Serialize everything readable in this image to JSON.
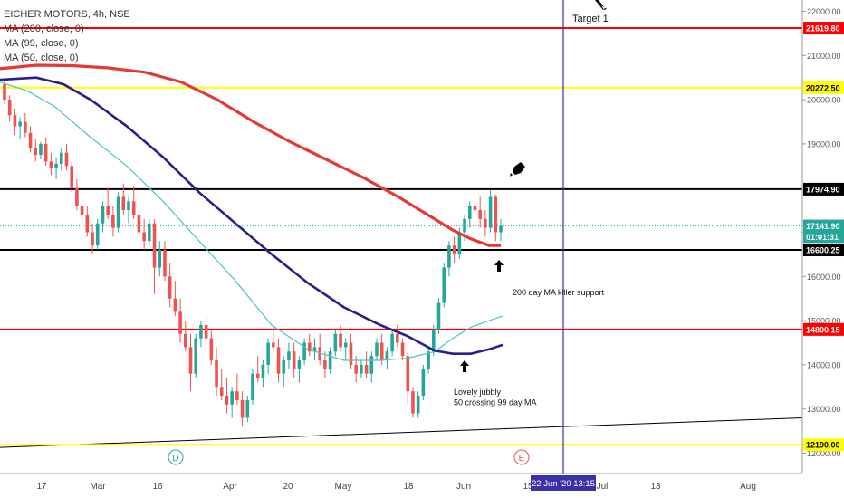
{
  "header": {
    "symbol_line": "EICHER MOTORS, 4h, NSE",
    "indicators": [
      "MA (200, close, 0)",
      "MA (99, close, 0)",
      "MA (50, close, 0)"
    ]
  },
  "colors": {
    "up_candle": "#26a69a",
    "down_candle": "#ef5350",
    "ma200": "#e53935",
    "ma99": "#2b1f8a",
    "ma50": "#4fc3c7",
    "hline_red": "#ff0000",
    "hline_yellow": "#ffff00",
    "hline_black": "#000000",
    "vline": "#3b30a8",
    "trendline": "#000000"
  },
  "chart_data": {
    "type": "candlestick",
    "x_ticks": [
      "17",
      "Mar",
      "16",
      "Apr",
      "20",
      "May",
      "18",
      "Jun",
      "15",
      "Jul",
      "13",
      "Aug"
    ],
    "y_ticks": [
      12000,
      13000,
      14000,
      15000,
      16000,
      17000,
      18000,
      19000,
      20000,
      21000,
      22000
    ],
    "y_tick_labels": [
      "12000.00",
      "13000.00",
      "14000.00",
      "15000.00",
      "16000.00",
      "17000.00",
      "18000.00",
      "19000.00",
      "20000.00",
      "21000.00",
      "22000.00"
    ],
    "ylim": [
      11800,
      22200
    ],
    "price_labels": [
      {
        "text": "21619.80",
        "value": 21619.8,
        "color": "#ff0000"
      },
      {
        "text": "20272.50",
        "value": 20272.5,
        "color": "#ffff00"
      },
      {
        "text": "17974.90",
        "value": 17974.9,
        "color": "#000000"
      },
      {
        "text": "17141.90",
        "value": 17141.9,
        "color": "#26a69a"
      },
      {
        "text": "01:01:31",
        "value": 16900,
        "color": "#26a69a"
      },
      {
        "text": "16600.25",
        "value": 16600.25,
        "color": "#000000"
      },
      {
        "text": "14800.15",
        "value": 14800.15,
        "color": "#ff0000"
      },
      {
        "text": "12190.00",
        "value": 12190,
        "color": "#ffff00"
      }
    ],
    "horizontal_lines": [
      {
        "value": 21619.8,
        "color": "#ff0000"
      },
      {
        "value": 20272.5,
        "color": "#ffff00"
      },
      {
        "value": 17974.9,
        "color": "#000000"
      },
      {
        "value": 16600.25,
        "color": "#000000"
      },
      {
        "value": 14800.15,
        "color": "#ff0000"
      },
      {
        "value": 12190,
        "color": "#ffff00"
      }
    ],
    "last_price": 17141.9,
    "vertical_line_date": "22 Jun '20",
    "vertical_line_time": "13:15",
    "candles": [
      [
        20350,
        20450,
        19900,
        20000
      ],
      [
        20000,
        20100,
        19500,
        19650
      ],
      [
        19650,
        19800,
        19200,
        19400
      ],
      [
        19400,
        19600,
        19100,
        19500
      ],
      [
        19500,
        19700,
        19150,
        19250
      ],
      [
        19250,
        19400,
        18800,
        18900
      ],
      [
        18900,
        19100,
        18600,
        18750
      ],
      [
        18750,
        19050,
        18650,
        19000
      ],
      [
        19000,
        19150,
        18500,
        18600
      ],
      [
        18600,
        18800,
        18300,
        18450
      ],
      [
        18450,
        18700,
        18200,
        18550
      ],
      [
        18550,
        18900,
        18400,
        18800
      ],
      [
        18800,
        19000,
        18400,
        18500
      ],
      [
        18500,
        18600,
        17900,
        18000
      ],
      [
        18000,
        18200,
        17500,
        17600
      ],
      [
        17600,
        17800,
        17200,
        17400
      ],
      [
        17400,
        17600,
        16900,
        17000
      ],
      [
        17000,
        17200,
        16500,
        16700
      ],
      [
        16700,
        17300,
        16600,
        17200
      ],
      [
        17200,
        17700,
        17000,
        17600
      ],
      [
        17600,
        18000,
        17300,
        17400
      ],
      [
        17400,
        17600,
        16900,
        17100
      ],
      [
        17100,
        17900,
        17000,
        17800
      ],
      [
        17800,
        18100,
        17400,
        17500
      ],
      [
        17500,
        17800,
        17200,
        17700
      ],
      [
        17700,
        18050,
        17300,
        17400
      ],
      [
        17400,
        17600,
        16900,
        17000
      ],
      [
        17000,
        17300,
        16600,
        16800
      ],
      [
        16800,
        17300,
        16700,
        17200
      ],
      [
        17200,
        17300,
        15600,
        16200
      ],
      [
        16200,
        16800,
        16000,
        16600
      ],
      [
        16600,
        16800,
        15900,
        16000
      ],
      [
        16000,
        16300,
        15300,
        15500
      ],
      [
        15500,
        15900,
        15100,
        15200
      ],
      [
        15200,
        15500,
        14500,
        14700
      ],
      [
        14700,
        15000,
        14300,
        14400
      ],
      [
        14400,
        14700,
        13400,
        13800
      ],
      [
        13800,
        14700,
        13700,
        14600
      ],
      [
        14600,
        15000,
        14400,
        14900
      ],
      [
        14900,
        15100,
        14500,
        14600
      ],
      [
        14600,
        14800,
        14000,
        14100
      ],
      [
        14100,
        14400,
        13300,
        13500
      ],
      [
        13500,
        13900,
        13200,
        13300
      ],
      [
        13300,
        13700,
        12900,
        13100
      ],
      [
        13100,
        13500,
        12800,
        13400
      ],
      [
        13400,
        13800,
        13100,
        13200
      ],
      [
        13200,
        13400,
        12600,
        12800
      ],
      [
        12800,
        13300,
        12700,
        13200
      ],
      [
        13200,
        13900,
        13100,
        13800
      ],
      [
        13800,
        14200,
        13600,
        13700
      ],
      [
        13700,
        14100,
        13500,
        14000
      ],
      [
        14000,
        14600,
        13800,
        14500
      ],
      [
        14500,
        14900,
        14300,
        14400
      ],
      [
        14400,
        14600,
        13600,
        13800
      ],
      [
        13800,
        14200,
        13500,
        14100
      ],
      [
        14100,
        14500,
        13900,
        14300
      ],
      [
        14300,
        14500,
        13700,
        13900
      ],
      [
        13900,
        14200,
        13600,
        14100
      ],
      [
        14100,
        14600,
        14000,
        14500
      ],
      [
        14500,
        14700,
        14200,
        14300
      ],
      [
        14300,
        14600,
        14100,
        14400
      ],
      [
        14400,
        14700,
        14000,
        14100
      ],
      [
        14100,
        14300,
        13700,
        13900
      ],
      [
        13900,
        14400,
        13800,
        14300
      ],
      [
        14300,
        14800,
        14200,
        14700
      ],
      [
        14700,
        14900,
        14300,
        14400
      ],
      [
        14400,
        14600,
        14100,
        14500
      ],
      [
        14500,
        14700,
        13900,
        14000
      ],
      [
        14000,
        14200,
        13600,
        13800
      ],
      [
        13800,
        14100,
        13700,
        14000
      ],
      [
        14000,
        14300,
        13700,
        13800
      ],
      [
        13800,
        14300,
        13600,
        14200
      ],
      [
        14200,
        14600,
        14100,
        14500
      ],
      [
        14500,
        14700,
        14000,
        14100
      ],
      [
        14100,
        14400,
        13900,
        14300
      ],
      [
        14300,
        14800,
        14200,
        14700
      ],
      [
        14700,
        14900,
        14400,
        14500
      ],
      [
        14500,
        14600,
        14100,
        14200
      ],
      [
        14200,
        14300,
        13100,
        13400
      ],
      [
        13400,
        13500,
        12800,
        12900
      ],
      [
        12900,
        13400,
        12800,
        13300
      ],
      [
        13300,
        14000,
        13200,
        13900
      ],
      [
        13900,
        14400,
        13800,
        14300
      ],
      [
        14300,
        14900,
        14200,
        14800
      ],
      [
        14800,
        15500,
        14700,
        15400
      ],
      [
        15400,
        16300,
        15300,
        16200
      ],
      [
        16200,
        16800,
        16000,
        16700
      ],
      [
        16700,
        16900,
        16300,
        16500
      ],
      [
        16500,
        17100,
        16400,
        17000
      ],
      [
        17000,
        17400,
        16800,
        17300
      ],
      [
        17300,
        17700,
        17100,
        17600
      ],
      [
        17600,
        17900,
        17300,
        17500
      ],
      [
        17500,
        17800,
        17100,
        17300
      ],
      [
        17300,
        17500,
        16900,
        17100
      ],
      [
        17100,
        17950,
        17000,
        17800
      ],
      [
        17800,
        17850,
        16800,
        17000
      ],
      [
        17000,
        17300,
        16800,
        17141.9
      ]
    ],
    "ma200": [
      [
        0,
        20700
      ],
      [
        40,
        20780
      ],
      [
        80,
        20770
      ],
      [
        120,
        20720
      ],
      [
        160,
        20620
      ],
      [
        200,
        20400
      ],
      [
        240,
        20000
      ],
      [
        280,
        19500
      ],
      [
        320,
        19050
      ],
      [
        360,
        18650
      ],
      [
        400,
        18250
      ],
      [
        440,
        17800
      ],
      [
        480,
        17300
      ],
      [
        500,
        17050
      ],
      [
        520,
        16850
      ],
      [
        540,
        16700
      ],
      [
        553,
        16700
      ]
    ],
    "ma99": [
      [
        0,
        20450
      ],
      [
        40,
        20500
      ],
      [
        70,
        20350
      ],
      [
        100,
        20000
      ],
      [
        140,
        19400
      ],
      [
        180,
        18700
      ],
      [
        220,
        17900
      ],
      [
        260,
        17200
      ],
      [
        300,
        16500
      ],
      [
        340,
        15850
      ],
      [
        380,
        15300
      ],
      [
        420,
        14900
      ],
      [
        450,
        14650
      ],
      [
        480,
        14320
      ],
      [
        500,
        14250
      ],
      [
        520,
        14250
      ],
      [
        540,
        14350
      ],
      [
        555,
        14450
      ]
    ],
    "ma50": [
      [
        0,
        20400
      ],
      [
        30,
        20200
      ],
      [
        60,
        19850
      ],
      [
        100,
        19150
      ],
      [
        140,
        18500
      ],
      [
        180,
        17700
      ],
      [
        220,
        16800
      ],
      [
        260,
        15900
      ],
      [
        300,
        14900
      ],
      [
        340,
        14350
      ],
      [
        380,
        14100
      ],
      [
        420,
        14100
      ],
      [
        450,
        14150
      ],
      [
        480,
        14300
      ],
      [
        500,
        14600
      ],
      [
        520,
        14850
      ],
      [
        540,
        15000
      ],
      [
        555,
        15100
      ]
    ],
    "trendline": [
      [
        0,
        12130
      ],
      [
        886,
        12800
      ]
    ],
    "annotations": [
      {
        "text": "Target 1",
        "date_hint": "22 Jun '20",
        "value": 21800
      },
      {
        "text": "200 day MA killer support",
        "value": 15660
      },
      {
        "text": "Lovely jubbly",
        "value": 13400
      },
      {
        "text": "50 crossing 99 day MA",
        "value": 13170
      }
    ],
    "event_markers": [
      {
        "text": "D",
        "color": "#26a69a"
      },
      {
        "text": "E",
        "color": "#ef5350"
      }
    ]
  }
}
